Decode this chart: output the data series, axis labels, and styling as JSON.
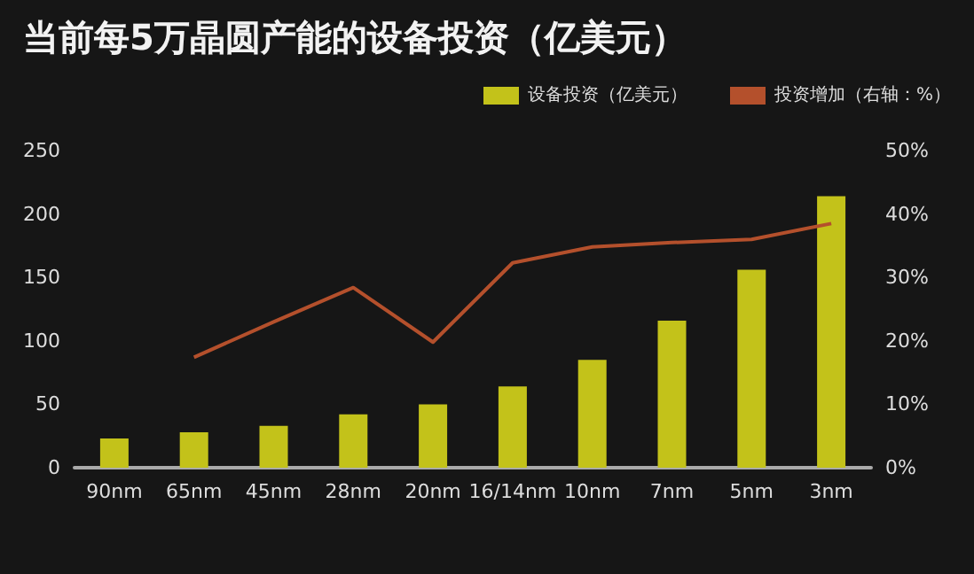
{
  "chart_data": {
    "type": "bar",
    "title": "当前每5万晶圆产能的设备投资（亿美元）",
    "categories": [
      "90nm",
      "65nm",
      "45nm",
      "28nm",
      "20nm",
      "16/14nm",
      "10nm",
      "7nm",
      "5nm",
      "3nm"
    ],
    "series": [
      {
        "name": "设备投资（亿美元）",
        "color": "#c3c21a",
        "values": [
          23,
          28,
          33,
          42,
          50,
          64,
          85,
          116,
          156,
          214
        ]
      },
      {
        "name": "投资增加（右轴：%）",
        "type": "line",
        "axis": "y2",
        "color": "#b4502c",
        "values": [
          null,
          17.4,
          23,
          28.4,
          19.8,
          32.3,
          34.8,
          35.5,
          36,
          38.5
        ]
      }
    ],
    "ylim": [
      0,
      250
    ],
    "yticks": [
      0,
      50,
      100,
      150,
      200,
      250
    ],
    "y2lim": [
      0,
      50
    ],
    "y2ticks": [
      {
        "value": 0,
        "label": "0%"
      },
      {
        "value": 10,
        "label": "10%"
      },
      {
        "value": 20,
        "label": "20%"
      },
      {
        "value": 30,
        "label": "30%"
      },
      {
        "value": 40,
        "label": "40%"
      },
      {
        "value": 50,
        "label": "50%"
      }
    ],
    "legend": "top right",
    "grid": false,
    "marker": "none",
    "line_style": "solid"
  }
}
